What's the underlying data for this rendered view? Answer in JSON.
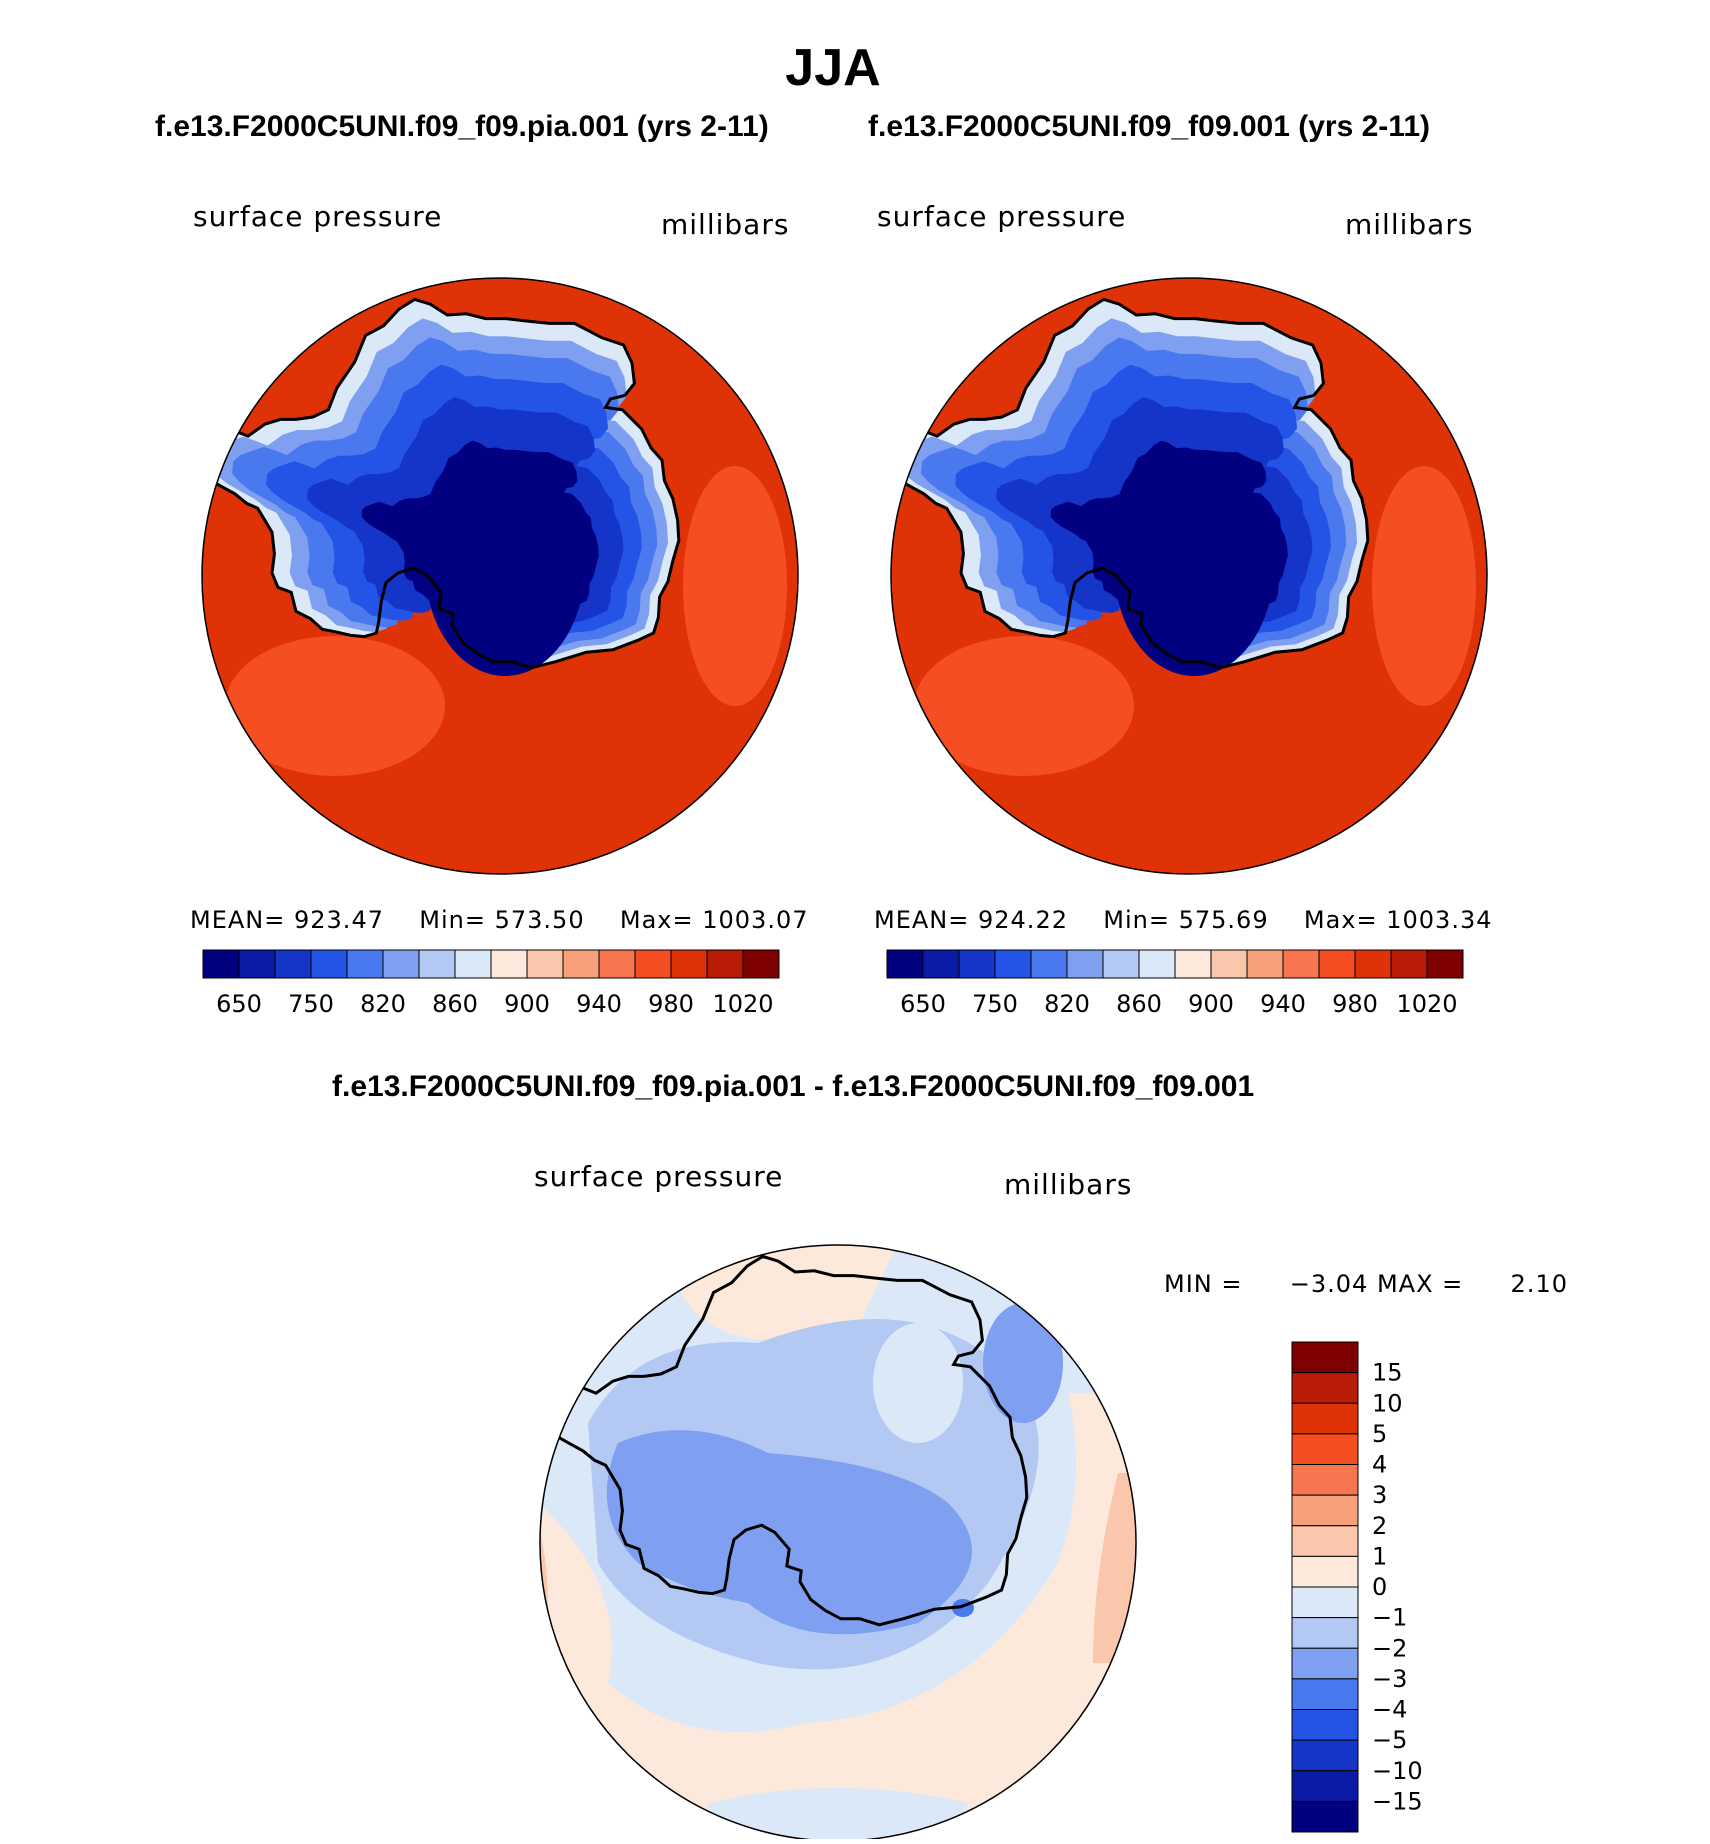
{
  "page_title": "JJA",
  "chart_data": [
    {
      "type": "heatmap",
      "projection": "south polar stereographic",
      "title": "f.e13.F2000C5UNI.f09_f09.pia.001 (yrs 2-11)",
      "left_label": "surface pressure",
      "right_label": "millibars",
      "stats": {
        "mean_label": "MEAN=",
        "mean": "923.47",
        "min_label": "Min=",
        "min": "573.50",
        "max_label": "Max=",
        "max": "1003.07"
      },
      "colorbar": {
        "orientation": "horizontal",
        "colors": [
          "#000080",
          "#0a1ba8",
          "#1535c8",
          "#2454e6",
          "#4a78ee",
          "#7f9ff0",
          "#b3c9f3",
          "#dae8f8",
          "#fde9dc",
          "#fbc7ac",
          "#f8a07c",
          "#f7764f",
          "#f44e22",
          "#e03207",
          "#b81c07",
          "#7f0000"
        ],
        "tick_labels": [
          "650",
          "750",
          "820",
          "860",
          "900",
          "940",
          "980",
          "1020"
        ]
      }
    },
    {
      "type": "heatmap",
      "projection": "south polar stereographic",
      "title": "f.e13.F2000C5UNI.f09_f09.001 (yrs 2-11)",
      "left_label": "surface pressure",
      "right_label": "millibars",
      "stats": {
        "mean_label": "MEAN=",
        "mean": "924.22",
        "min_label": "Min=",
        "min": "575.69",
        "max_label": "Max=",
        "max": "1003.34"
      },
      "colorbar": {
        "orientation": "horizontal",
        "colors": [
          "#000080",
          "#0a1ba8",
          "#1535c8",
          "#2454e6",
          "#4a78ee",
          "#7f9ff0",
          "#b3c9f3",
          "#dae8f8",
          "#fde9dc",
          "#fbc7ac",
          "#f8a07c",
          "#f7764f",
          "#f44e22",
          "#e03207",
          "#b81c07",
          "#7f0000"
        ],
        "tick_labels": [
          "650",
          "750",
          "820",
          "860",
          "900",
          "940",
          "980",
          "1020"
        ]
      }
    },
    {
      "type": "heatmap",
      "projection": "south polar stereographic",
      "title": "f.e13.F2000C5UNI.f09_f09.pia.001 - f.e13.F2000C5UNI.f09_f09.001",
      "left_label": "surface pressure",
      "right_label": "millibars",
      "stats": {
        "min_label": "MIN =",
        "min": "−3.04",
        "max_label": "MAX =",
        "max": "2.10"
      },
      "colorbar": {
        "orientation": "vertical",
        "colors": [
          "#7f0000",
          "#b81c07",
          "#e03207",
          "#f44e22",
          "#f7764f",
          "#f8a07c",
          "#fbc7ac",
          "#fde9dc",
          "#dae8f8",
          "#b3c9f3",
          "#7f9ff0",
          "#4a78ee",
          "#2454e6",
          "#1535c8",
          "#0a1ba8",
          "#000080"
        ],
        "tick_labels": [
          "15",
          "10",
          "5",
          "4",
          "3",
          "2",
          "1",
          "0",
          "−1",
          "−2",
          "−3",
          "−4",
          "−5",
          "−10",
          "−15"
        ]
      }
    }
  ],
  "map_colors": {
    "ocean": "#e03207",
    "ocean_dark": "#b81c07",
    "ocean_light": "#f44e22",
    "ice_edge": "#dae8f8",
    "ice_1": "#7f9ff0",
    "ice_2": "#4a78ee",
    "ice_3": "#2454e6",
    "ice_4": "#1535c8",
    "ice_5": "#000080",
    "diff_bg": "#dae8f8",
    "diff_pos": "#fde9dc",
    "diff_pos2": "#fbc7ac",
    "diff_neg1": "#b3c9f3",
    "diff_neg2": "#7f9ff0",
    "diff_neg3": "#4a78ee",
    "coast": "#000000"
  }
}
